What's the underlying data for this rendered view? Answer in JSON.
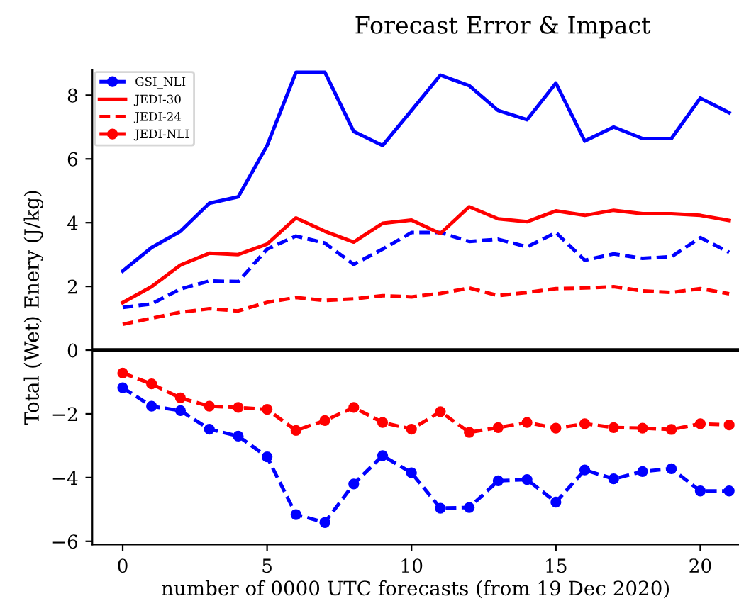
{
  "chart_data": {
    "type": "line",
    "title": "Forecast Error & Impact",
    "xlabel": "number of 0000 UTC forecasts (from 19 Dec 2020)",
    "ylabel": "Total (Wet) Enery (J/kg)",
    "x": [
      0,
      1,
      2,
      3,
      4,
      5,
      6,
      7,
      8,
      9,
      10,
      11,
      12,
      13,
      14,
      15,
      16,
      17,
      18,
      19,
      20,
      21
    ],
    "series": [
      {
        "color": "#0000ff",
        "line_style": "solid",
        "marker": "none",
        "values": [
          2.48,
          3.22,
          3.73,
          4.61,
          4.81,
          6.42,
          8.72,
          8.72,
          6.86,
          6.42,
          7.52,
          8.63,
          8.3,
          7.52,
          7.23,
          8.38,
          6.56,
          7.0,
          6.64,
          6.64,
          7.91,
          7.45
        ]
      },
      {
        "color": "#0000ff",
        "line_style": "dashed",
        "marker": "none",
        "values": [
          1.34,
          1.45,
          1.92,
          2.17,
          2.15,
          3.17,
          3.58,
          3.36,
          2.69,
          3.17,
          3.69,
          3.69,
          3.41,
          3.48,
          3.24,
          3.69,
          2.82,
          3.02,
          2.88,
          2.93,
          3.53,
          3.07
        ]
      },
      {
        "name": "GSI_NLI",
        "color": "#0000ff",
        "line_style": "dashed",
        "marker": "circle",
        "values": [
          -1.18,
          -1.76,
          -1.9,
          -2.48,
          -2.7,
          -3.35,
          -5.16,
          -5.41,
          -4.2,
          -3.31,
          -3.85,
          -4.96,
          -4.94,
          -4.1,
          -4.06,
          -4.77,
          -3.76,
          -4.04,
          -3.81,
          -3.72,
          -4.42,
          -4.42
        ]
      },
      {
        "name": "JEDI-30",
        "color": "#ff0000",
        "line_style": "solid",
        "marker": "none",
        "values": [
          1.49,
          1.99,
          2.67,
          3.04,
          3.0,
          3.33,
          4.15,
          3.73,
          3.39,
          3.98,
          4.08,
          3.66,
          4.5,
          4.12,
          4.03,
          4.37,
          4.23,
          4.39,
          4.28,
          4.28,
          4.23,
          4.07
        ]
      },
      {
        "name": "JEDI-24",
        "color": "#ff0000",
        "line_style": "dashed",
        "marker": "none",
        "values": [
          0.81,
          1.0,
          1.19,
          1.3,
          1.23,
          1.5,
          1.65,
          1.56,
          1.61,
          1.71,
          1.67,
          1.78,
          1.95,
          1.71,
          1.81,
          1.93,
          1.95,
          1.99,
          1.86,
          1.81,
          1.93,
          1.77
        ]
      },
      {
        "name": "JEDI-NLI",
        "color": "#ff0000",
        "line_style": "dashed",
        "marker": "circle",
        "values": [
          -0.72,
          -1.06,
          -1.5,
          -1.76,
          -1.8,
          -1.86,
          -2.52,
          -2.21,
          -1.8,
          -2.27,
          -2.48,
          -1.93,
          -2.58,
          -2.43,
          -2.27,
          -2.45,
          -2.31,
          -2.43,
          -2.45,
          -2.49,
          -2.31,
          -2.35
        ]
      }
    ],
    "ref_lines": [
      {
        "axis": "y",
        "value": 0,
        "color": "#000000",
        "line_style": "solid"
      }
    ],
    "xlim": [
      -1.05,
      21.34
    ],
    "xticks": [
      0,
      5,
      10,
      15,
      20
    ],
    "ylim": [
      -6.1,
      8.8
    ],
    "yticks": [
      -6,
      -4,
      -2,
      0,
      2,
      4,
      6,
      8
    ],
    "grid": false,
    "legend": "top left"
  }
}
